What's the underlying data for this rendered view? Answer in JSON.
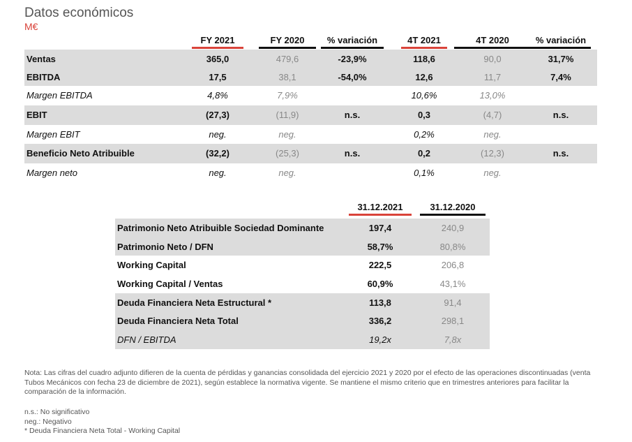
{
  "title": "Datos económicos",
  "unit": "M€",
  "table1": {
    "headers": [
      "FY 2021",
      "FY 2020",
      "% variación",
      "4T 2021",
      "4T 2020",
      "% variación"
    ],
    "header_bar_colors": [
      "#d9433a",
      "#111111",
      "#111111",
      "#d9433a",
      "#111111",
      "#111111"
    ],
    "rows": [
      {
        "label": "Ventas",
        "values": [
          "365,0",
          "479,6",
          "-23,9%",
          "118,6",
          "90,0",
          "31,7%"
        ]
      },
      {
        "label": "EBITDA",
        "values": [
          "17,5",
          "38,1",
          "-54,0%",
          "12,6",
          "11,7",
          "7,4%"
        ]
      },
      {
        "label": "Margen EBITDA",
        "values": [
          "4,8%",
          "7,9%",
          "",
          "10,6%",
          "13,0%",
          ""
        ]
      },
      {
        "label": "EBIT",
        "values": [
          "(27,3)",
          "(11,9)",
          "n.s.",
          "0,3",
          "(4,7)",
          "n.s."
        ]
      },
      {
        "label": "Margen EBIT",
        "values": [
          "neg.",
          "neg.",
          "",
          "0,2%",
          "neg.",
          ""
        ]
      },
      {
        "label": "Beneficio Neto Atribuible",
        "values": [
          "(32,2)",
          "(25,3)",
          "n.s.",
          "0,2",
          "(12,3)",
          "n.s."
        ]
      },
      {
        "label": "Margen neto",
        "values": [
          "neg.",
          "neg.",
          "",
          "0,1%",
          "neg.",
          ""
        ]
      }
    ]
  },
  "table2": {
    "headers": [
      "31.12.2021",
      "31.12.2020"
    ],
    "header_bar_colors": [
      "#d9433a",
      "#111111"
    ],
    "rows": [
      {
        "label": "Patrimonio Neto Atribuible Sociedad Dominante",
        "values": [
          "197,4",
          "240,9"
        ]
      },
      {
        "label": "Patrimonio Neto / DFN",
        "values": [
          "58,7%",
          "80,8%"
        ]
      },
      {
        "label": "Working Capital",
        "values": [
          "222,5",
          "206,8"
        ]
      },
      {
        "label": "Working Capital / Ventas",
        "values": [
          "60,9%",
          "43,1%"
        ]
      },
      {
        "label": "Deuda Financiera Neta Estructural *",
        "values": [
          "113,8",
          "91,4"
        ]
      },
      {
        "label": "Deuda Financiera Neta Total",
        "values": [
          "336,2",
          "298,1"
        ]
      },
      {
        "label": "DFN / EBITDA",
        "values": [
          "19,2x",
          "7,8x"
        ]
      }
    ]
  },
  "note": "Nota: Las cifras del cuadro adjunto difieren de la cuenta de pérdidas y ganancias consolidada del ejercicio 2021 y 2020 por el efecto de las operaciones discontinuadas (venta Tubos Mecánicos con fecha 23 de diciembre de 2021), según establece la normativa vigente. Se mantiene el mismo criterio que en trimestres anteriores para facilitar la comparación de la información.",
  "legend": [
    "n.s.: No significativo",
    "neg.: Negativo",
    "* Deuda Financiera Neta Total - Working Capital"
  ]
}
